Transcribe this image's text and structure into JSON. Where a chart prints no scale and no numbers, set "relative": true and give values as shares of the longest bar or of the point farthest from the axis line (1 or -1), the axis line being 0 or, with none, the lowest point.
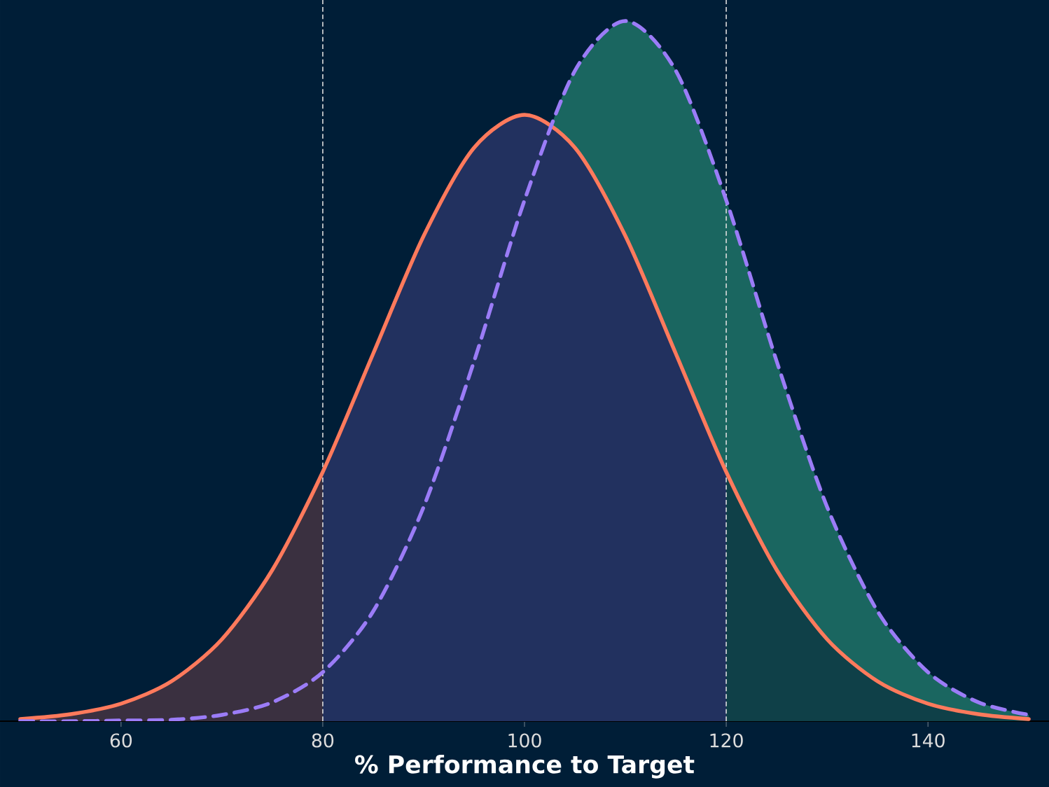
{
  "chart_data": {
    "type": "line",
    "relative": true,
    "xlabel": "% Performance to Target",
    "xlim": [
      48,
      152
    ],
    "xticks": [
      60,
      80,
      100,
      120,
      140
    ],
    "tick_labels": "x",
    "marker": "none",
    "ref_lines": [
      {
        "axis": "x",
        "value": 80,
        "color": "#dddddd",
        "line_style": "dashed"
      },
      {
        "axis": "x",
        "value": 120,
        "color": "#dddddd",
        "line_style": "dashed"
      }
    ],
    "series": [
      {
        "type": "area",
        "color": "#1a6660",
        "x": [
          102.7,
          105,
          110,
          115,
          120,
          125,
          130,
          135,
          140,
          145,
          150
        ],
        "values": [
          0.851,
          0.929,
          1,
          0.929,
          0.744,
          0.514,
          0.306,
          0.157,
          0.07,
          0.027,
          0.009
        ]
      },
      {
        "type": "area",
        "color": "#3a3040",
        "x": [
          50,
          55,
          60,
          65,
          70,
          75,
          80
        ],
        "values": [
          0.003,
          0.01,
          0.025,
          0.057,
          0.117,
          0.216,
          0.356
        ]
      },
      {
        "type": "area",
        "color": "#22315f",
        "x": [
          80,
          85,
          90,
          95,
          100,
          105,
          110,
          115,
          120
        ],
        "values": [
          0.356,
          0.525,
          0.693,
          0.819,
          0.866,
          0.819,
          0.693,
          0.525,
          0.356
        ]
      },
      {
        "type": "area",
        "color": "#0f4048",
        "x": [
          120,
          125,
          130,
          135,
          140,
          145,
          150
        ],
        "values": [
          0.356,
          0.216,
          0.117,
          0.057,
          0.025,
          0.01,
          0.003
        ]
      },
      {
        "color": "#ff7a5c",
        "line_style": "solid",
        "x": [
          50,
          55,
          60,
          65,
          70,
          75,
          80,
          85,
          90,
          95,
          100,
          105,
          110,
          115,
          120,
          125,
          130,
          135,
          140,
          145,
          150
        ],
        "values": [
          0.003,
          0.01,
          0.025,
          0.057,
          0.117,
          0.216,
          0.356,
          0.525,
          0.693,
          0.819,
          0.866,
          0.819,
          0.693,
          0.525,
          0.356,
          0.216,
          0.117,
          0.057,
          0.025,
          0.01,
          0.003
        ]
      },
      {
        "color": "#9b7cf7",
        "line_style": "dashed",
        "x": [
          50,
          55,
          60,
          65,
          70,
          75,
          80,
          85,
          90,
          95,
          100,
          105,
          110,
          115,
          120,
          125,
          130,
          135,
          140,
          145,
          150
        ],
        "values": [
          0.0,
          0.0,
          0.001,
          0.002,
          0.009,
          0.027,
          0.07,
          0.157,
          0.306,
          0.514,
          0.744,
          0.929,
          1,
          0.929,
          0.744,
          0.514,
          0.306,
          0.157,
          0.07,
          0.027,
          0.009
        ]
      }
    ]
  }
}
